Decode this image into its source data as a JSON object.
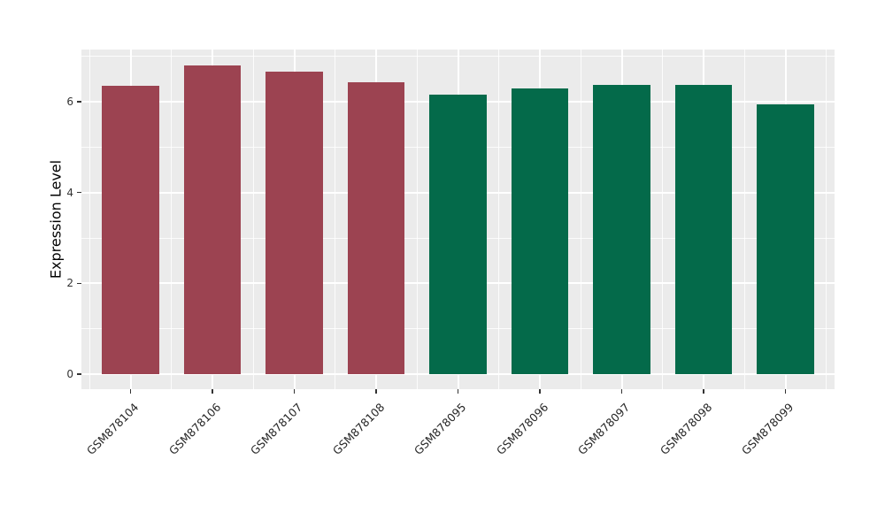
{
  "chart_data": {
    "type": "bar",
    "title": "",
    "xlabel": "",
    "ylabel": "Expression Level",
    "categories": [
      "GSM878104",
      "GSM878106",
      "GSM878107",
      "GSM878108",
      "GSM878095",
      "GSM878096",
      "GSM878097",
      "GSM878098",
      "GSM878099"
    ],
    "values": [
      6.36,
      6.8,
      6.66,
      6.43,
      6.16,
      6.29,
      6.37,
      6.37,
      5.94
    ],
    "bar_colors": [
      "#9c4351",
      "#9c4351",
      "#9c4351",
      "#9c4351",
      "#046a4a",
      "#046a4a",
      "#046a4a",
      "#046a4a",
      "#046a4a"
    ],
    "group_colors": {
      "left_group": "#9c4351",
      "right_group": "#046a4a"
    },
    "yticks": [
      0,
      2,
      4,
      6
    ],
    "ytick_labels": [
      "0",
      "2",
      "4",
      "6"
    ],
    "minor_yticks": [
      1,
      3,
      5,
      7
    ],
    "ylim": [
      -0.33,
      7.15
    ],
    "bar_width_frac": 0.7,
    "x_tick_rotation": -45,
    "grid": true,
    "legend": false,
    "panel_background": "#ebebeb",
    "gridline_color": "#ffffff",
    "tick_color": "#333333",
    "axis_text_color": "#262626"
  }
}
